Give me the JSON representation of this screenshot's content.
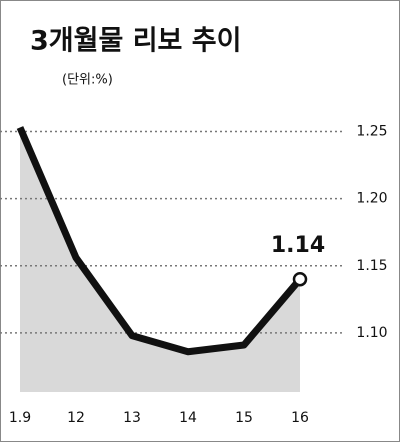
{
  "chart_data": {
    "type": "line",
    "title": "3개월물 리보 추이",
    "subtitle": "(단위:%)",
    "categories": [
      "1.9",
      "12",
      "13",
      "14",
      "15",
      "16"
    ],
    "values": [
      1.253,
      1.156,
      1.098,
      1.086,
      1.091,
      1.14
    ],
    "color": "#111111",
    "area_color": "#d9d9d9",
    "ylim": [
      1.056,
      1.266
    ],
    "yticks": [
      {
        "value": 1.1,
        "label": "1.10"
      },
      1.15,
      {
        "value": 1.2,
        "label": "1.20"
      },
      1.25
    ],
    "grid": true,
    "value_label_index": 5
  }
}
